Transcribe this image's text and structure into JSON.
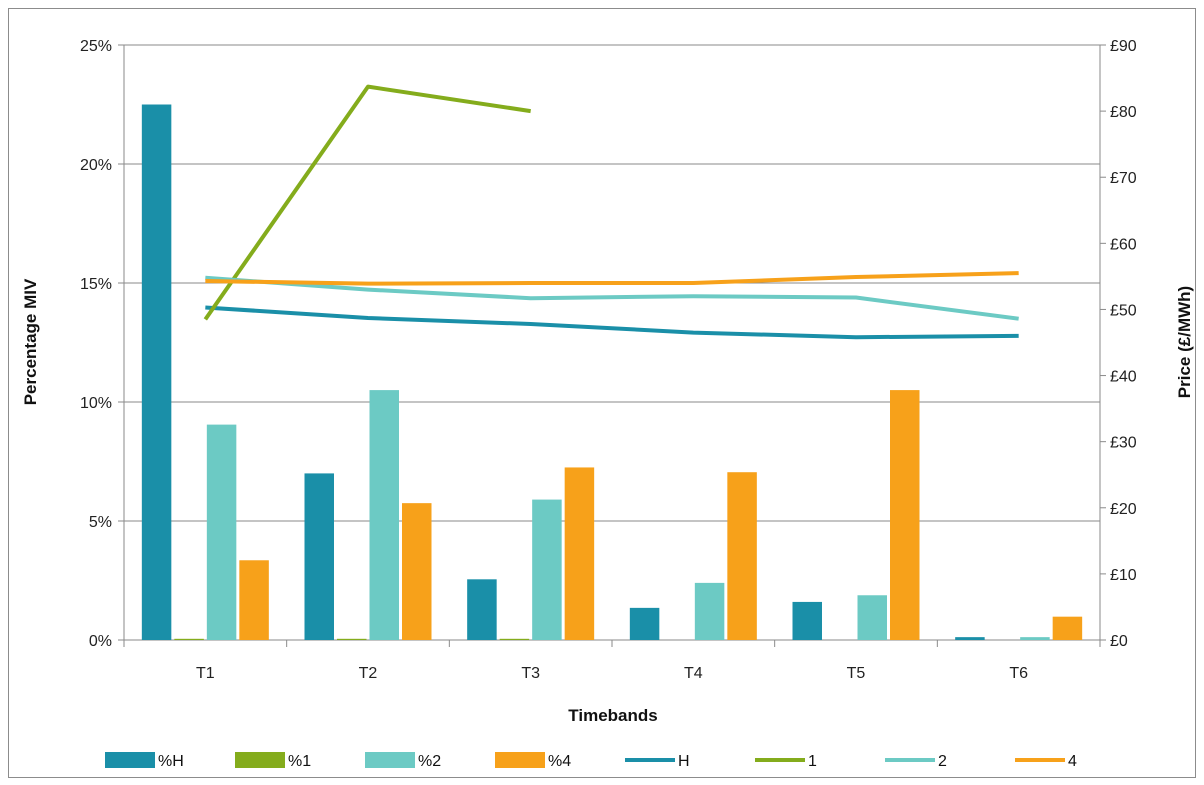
{
  "chart_data": {
    "type": "bar",
    "categories": [
      "T1",
      "T2",
      "T3",
      "T4",
      "T5",
      "T6"
    ],
    "xlabel": "Timebands",
    "ylabel": "Percentage MIV",
    "y2label": "Price (£/MWh)",
    "ylim": [
      0,
      25
    ],
    "y2lim": [
      0,
      90
    ],
    "yticks": [
      "0%",
      "5%",
      "10%",
      "15%",
      "20%",
      "25%"
    ],
    "y2ticks": [
      "£0",
      "£10",
      "£20",
      "£30",
      "£40",
      "£50",
      "£60",
      "£70",
      "£80",
      "£90"
    ],
    "grid": true,
    "legend_position": "bottom",
    "bar_series": [
      {
        "name": "%H",
        "color": "#1a8fa8",
        "values": [
          22.5,
          7.0,
          2.55,
          1.35,
          1.6,
          0.12
        ]
      },
      {
        "name": "%1",
        "color": "#84ac1c",
        "values": [
          0.05,
          0.05,
          0.05,
          0,
          0,
          0
        ]
      },
      {
        "name": "%2",
        "color": "#6ccac4",
        "values": [
          9.05,
          10.5,
          5.9,
          2.4,
          1.88,
          0.12
        ]
      },
      {
        "name": "%4",
        "color": "#f7a11a",
        "values": [
          3.35,
          5.75,
          7.25,
          7.05,
          10.5,
          0.98
        ]
      }
    ],
    "line_series": [
      {
        "name": "H",
        "color": "#1a8fa8",
        "values": [
          50.3,
          48.7,
          47.8,
          46.5,
          45.8,
          46.0
        ]
      },
      {
        "name": "1",
        "color": "#84ac1c",
        "values": [
          48.5,
          83.7,
          80.0,
          null,
          null,
          null
        ]
      },
      {
        "name": "2",
        "color": "#6ccac4",
        "values": [
          54.8,
          53.0,
          51.7,
          52.0,
          51.8,
          48.6
        ]
      },
      {
        "name": "4",
        "color": "#f7a11a",
        "values": [
          54.3,
          53.9,
          54.0,
          54.0,
          54.9,
          55.5
        ]
      }
    ]
  }
}
